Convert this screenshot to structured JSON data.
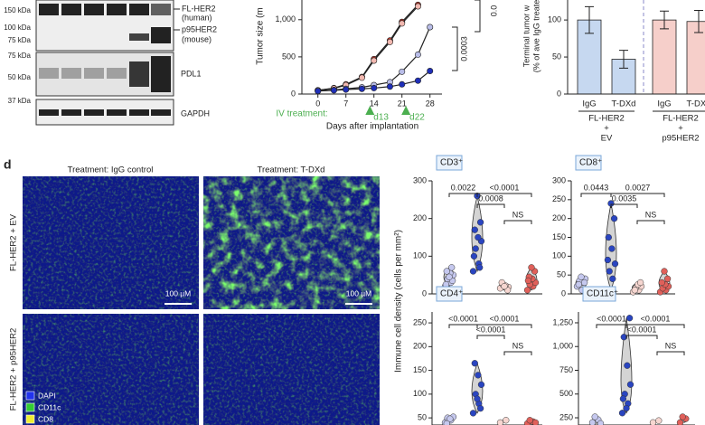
{
  "panel_label": "d",
  "blot": {
    "mw_labels": [
      "150 kDa",
      "100 kDa",
      "75 kDa",
      "75 kDa",
      "50 kDa",
      "37 kDa"
    ],
    "band_labels": [
      [
        "FL-HER2",
        "(human)"
      ],
      [
        "p95HER2",
        "(mouse)"
      ],
      [
        "PDL1"
      ],
      [
        "GAPDH"
      ]
    ]
  },
  "growth": {
    "type": "line",
    "ylabel": "Tumor size (m",
    "xlabel": "Days after implantation",
    "x": [
      0,
      4,
      7,
      11,
      14,
      18,
      21,
      25,
      28
    ],
    "xlim": [
      -4,
      31
    ],
    "xticks": [
      0,
      7,
      14,
      21,
      28
    ],
    "ylim": [
      0,
      1265
    ],
    "yticks": [
      0,
      500,
      {
        "value": 1000,
        "label": "1,000"
      }
    ],
    "series": [
      {
        "color": "#c0392b",
        "values": [
          50,
          80,
          130,
          230,
          470,
          720,
          970,
          1200,
          null
        ]
      },
      {
        "color": "#f2b8b0",
        "values": [
          50,
          75,
          120,
          220,
          450,
          700,
          950,
          1180,
          null
        ]
      },
      {
        "color": "#b9bde8",
        "values": [
          40,
          55,
          70,
          90,
          120,
          160,
          300,
          530,
          900
        ]
      },
      {
        "color": "#1f2fb8",
        "values": [
          40,
          50,
          60,
          70,
          80,
          100,
          130,
          180,
          310
        ]
      }
    ],
    "treatment_label": "IV treatment:",
    "doses": [
      {
        "day": 13,
        "label": "d13"
      },
      {
        "day": 22,
        "label": "d22"
      }
    ],
    "pvalues": [
      "0.0003",
      "0.0"
    ]
  },
  "terminal": {
    "type": "bar",
    "ylabel": [
      "Terminal tumor w",
      "(% of ave IgG treate"
    ],
    "categories": [
      "IgG",
      "T-DXd",
      "IgG",
      "T-DXd"
    ],
    "values": [
      100,
      47,
      100,
      98
    ],
    "errors": [
      18,
      12,
      12,
      15
    ],
    "colors": [
      "#c6d8f0",
      "#c6d8f0",
      "#f6cfca",
      "#f6cfca"
    ],
    "ylim": [
      0,
      127
    ],
    "yticks": [
      0,
      50,
      100
    ],
    "groups": [
      [
        "FL-HER2",
        "+",
        "EV"
      ],
      [
        "FL-HER2",
        "+",
        "p95HER2"
      ]
    ]
  },
  "images": {
    "columns": [
      "Treatment: IgG control",
      "Treatment: T-DXd"
    ],
    "rows": [
      "FL-HER2 + EV",
      "FL-HER2 + p95HER2"
    ],
    "scale_bar": "100 µM",
    "legend": [
      {
        "label": "DAPI",
        "color": "#2233ee"
      },
      {
        "label": "CD11c",
        "color": "#33cc33"
      },
      {
        "label": "CD8",
        "color": "#eeee33"
      }
    ]
  },
  "density": {
    "ylabel": "Immune cell density (cells per mm²)",
    "colors": [
      "#c5c8ee",
      "#2a45c0",
      "#f6d6d0",
      "#e0605a"
    ],
    "plots": [
      {
        "type": "violin",
        "title": "CD3⁺",
        "ylim": [
          0,
          300
        ],
        "yticks": [
          0,
          100,
          200,
          300
        ],
        "groups": [
          [
            20,
            30,
            40,
            50,
            55,
            60,
            35,
            45,
            25,
            70
          ],
          [
            60,
            80,
            120,
            140,
            150,
            170,
            190,
            260,
            100,
            70
          ],
          [
            15,
            20,
            25,
            18,
            22,
            30,
            10,
            20
          ],
          [
            10,
            20,
            25,
            30,
            40,
            45,
            60,
            70,
            35
          ]
        ],
        "pvalues": [
          "0.0022",
          "0.0008",
          "<0.0001",
          "NS"
        ]
      },
      {
        "type": "violin",
        "title": "CD8⁺",
        "ylim": [
          0,
          300
        ],
        "yticks": [
          0,
          50,
          100,
          150,
          200,
          250,
          300
        ],
        "groups": [
          [
            20,
            30,
            35,
            40,
            10,
            25,
            30,
            45
          ],
          [
            10,
            40,
            60,
            80,
            120,
            150,
            200,
            240,
            90
          ],
          [
            5,
            10,
            15,
            20,
            25,
            10,
            30
          ],
          [
            5,
            10,
            15,
            20,
            25,
            30,
            40,
            60
          ]
        ],
        "pvalues": [
          "0.0443",
          "0.0035",
          "0.0027",
          "NS"
        ]
      },
      {
        "type": "violin",
        "title": "CD4⁺",
        "ylim": [
          35,
          273
        ],
        "yticks": [
          50,
          100,
          150,
          200,
          250
        ],
        "groups": [
          [
            40,
            45,
            50,
            52,
            48,
            38
          ],
          [
            60,
            80,
            100,
            120,
            140,
            165,
            70,
            90
          ],
          [
            40,
            45
          ],
          [
            38,
            42,
            45,
            40
          ]
        ],
        "pvalues": [
          "<0.0001",
          "<0.0001",
          "<0.0001",
          "NS"
        ]
      },
      {
        "type": "violin",
        "title": "CD11c⁺",
        "ylim": [
          174,
          1364
        ],
        "yticks": [
          250,
          500,
          750,
          {
            "value": 1000,
            "label": "1,000"
          },
          {
            "value": 1250,
            "label": "1,250"
          }
        ],
        "groups": [
          [
            200,
            230,
            260,
            190
          ],
          [
            300,
            400,
            500,
            600,
            800,
            1100,
            1300,
            350,
            450
          ],
          [
            200,
            220
          ],
          [
            200,
            240,
            260
          ]
        ],
        "pvalues": [
          "<0.0001",
          "<0.0001",
          "<0.0001",
          "NS"
        ]
      }
    ]
  }
}
